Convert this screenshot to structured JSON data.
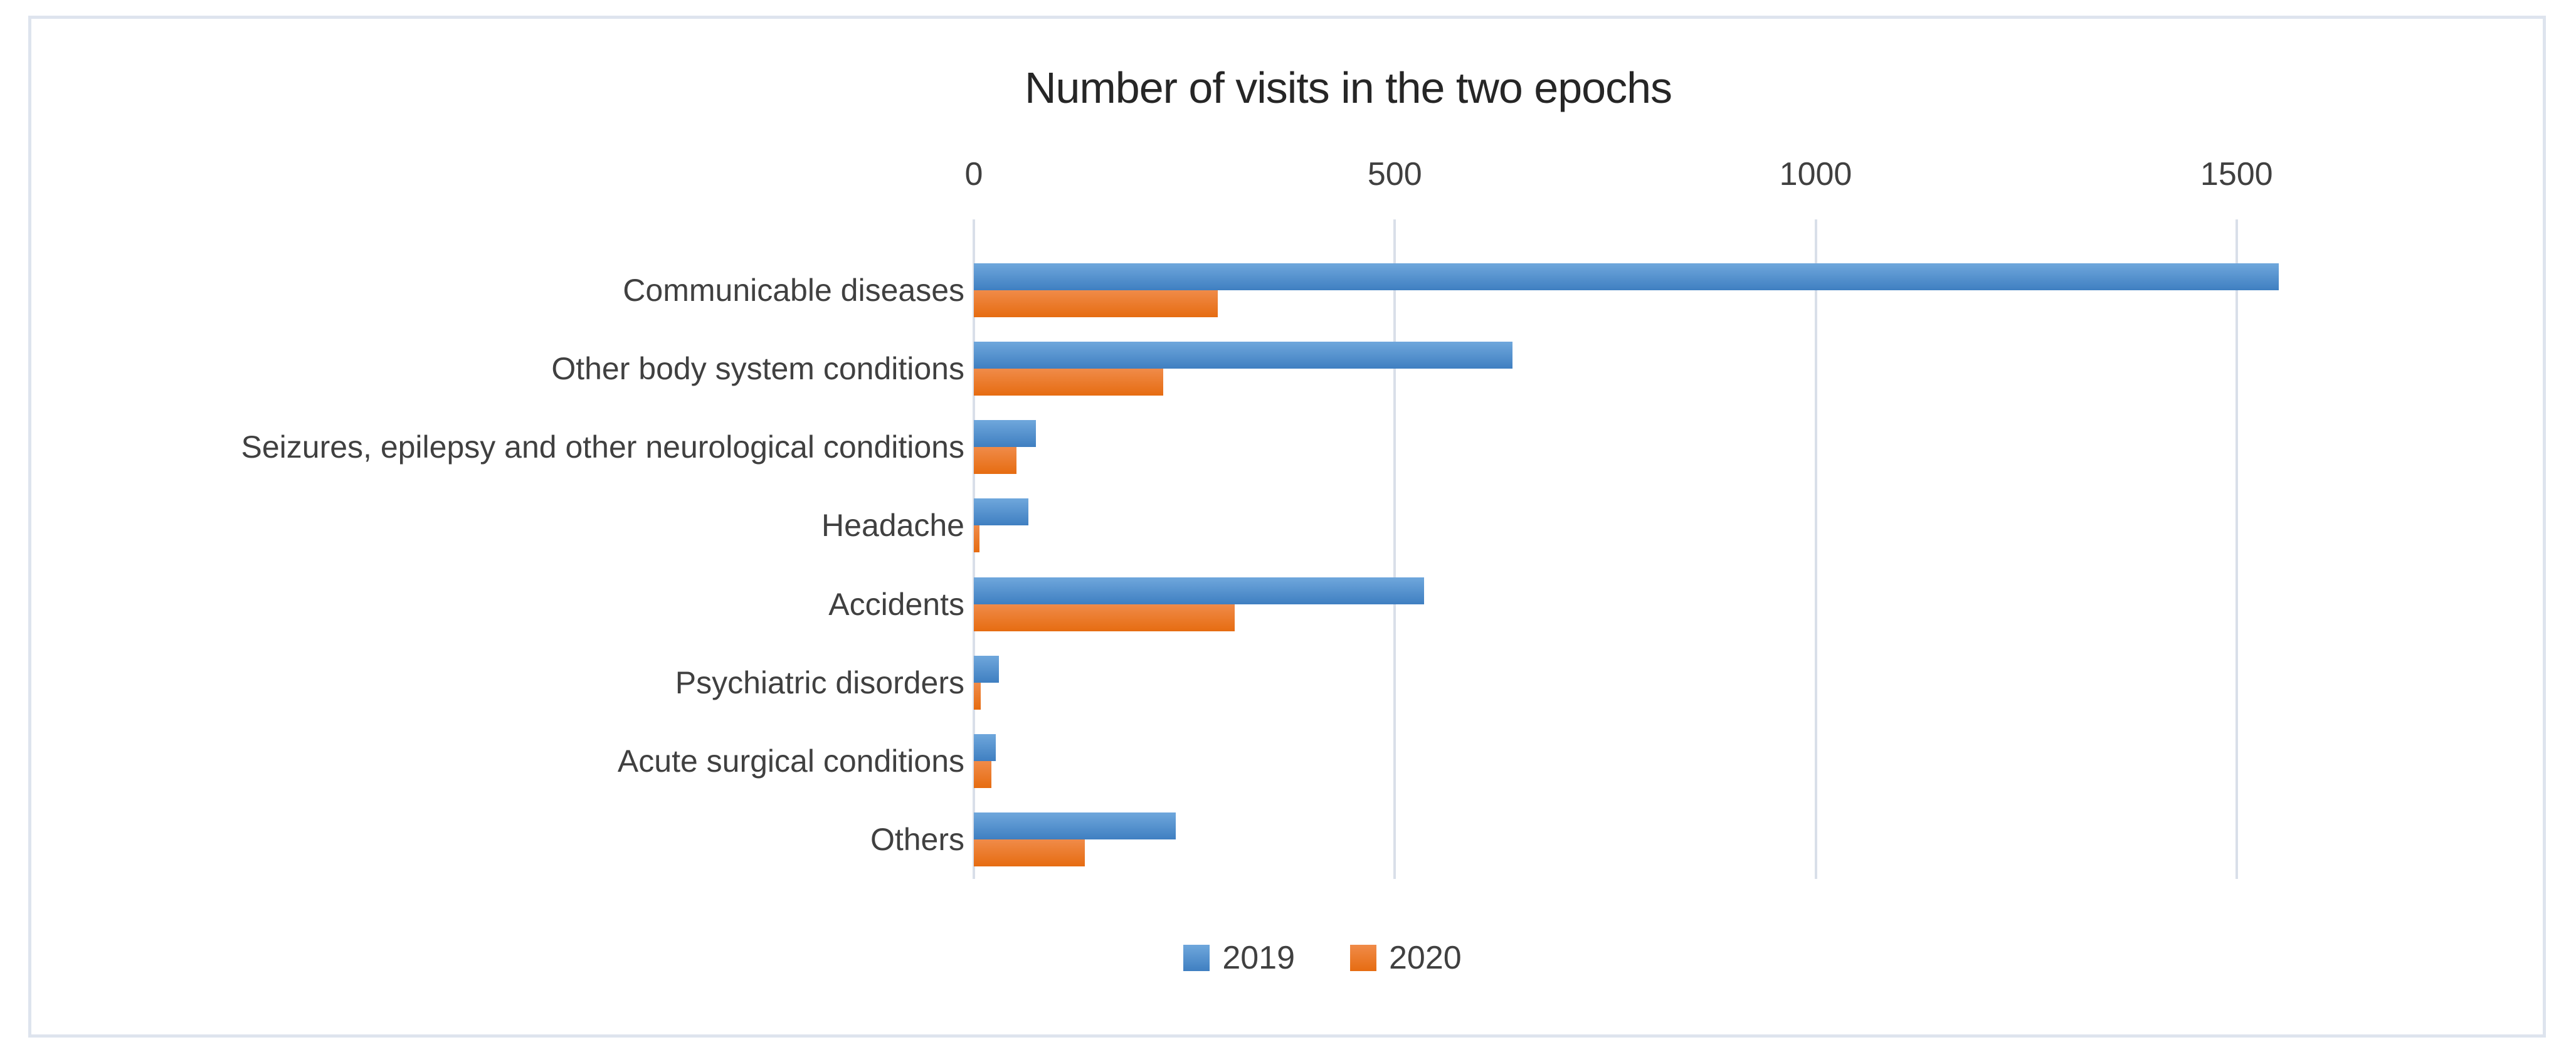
{
  "chart_data": {
    "type": "bar",
    "orientation": "horizontal",
    "title": "Number of visits in the two epochs",
    "categories": [
      "Communicable diseases",
      "Other body system conditions",
      "Seizures, epilepsy and other neurological conditions",
      "Headache",
      "Accidents",
      "Psychiatric disorders",
      "Acute surgical conditions",
      "Others"
    ],
    "series": [
      {
        "name": "2019",
        "color_top": "#6fa7dc",
        "color_bottom": "#3f7fc1",
        "values": [
          1550,
          640,
          74,
          65,
          535,
          30,
          26,
          240
        ]
      },
      {
        "name": "2020",
        "color_top": "#f08b49",
        "color_bottom": "#e66c11",
        "values": [
          290,
          225,
          51,
          7,
          310,
          8,
          21,
          132
        ]
      }
    ],
    "x_axis": {
      "position": "top",
      "min": 0,
      "max": 1600,
      "ticks": [
        0,
        500,
        1000,
        1500
      ]
    },
    "grid": true,
    "legend_position": "bottom",
    "colors": {
      "gridline": "#d9dfe9",
      "frame_border": "#dee4ee",
      "title_text": "#262626",
      "axis_text": "#404040",
      "background": "#ffffff"
    }
  }
}
